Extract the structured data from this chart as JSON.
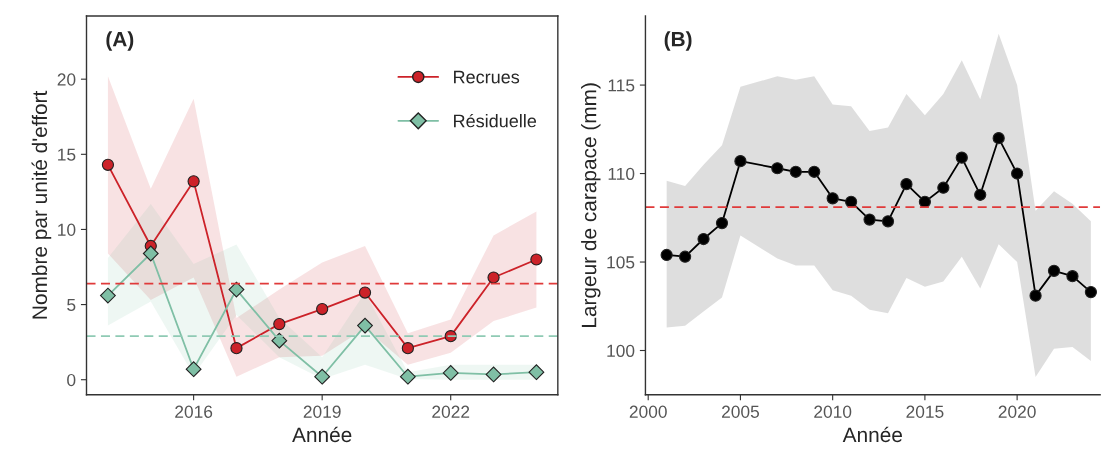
{
  "chart_data": [
    {
      "type": "line",
      "title": "(A)",
      "xlabel": "Année",
      "ylabel": "Nombre par unité d'effort",
      "x": [
        2014,
        2015,
        2016,
        2017,
        2018,
        2019,
        2020,
        2021,
        2022,
        2023,
        2024
      ],
      "series": [
        {
          "name": "Recrues",
          "color": "#cc2229",
          "marker": "circle",
          "values": [
            14.3,
            8.9,
            13.2,
            2.1,
            3.7,
            4.7,
            5.8,
            2.1,
            2.9,
            6.8,
            8.0
          ],
          "lower": [
            8.4,
            5.3,
            6.8,
            0.2,
            1.5,
            1.6,
            3.4,
            1.0,
            1.8,
            3.9,
            4.8
          ],
          "upper": [
            20.2,
            12.7,
            18.7,
            4.1,
            6.0,
            7.8,
            8.9,
            3.1,
            4.0,
            9.6,
            11.2
          ]
        },
        {
          "name": "Résiduelle",
          "color": "#7fbfa5",
          "marker": "diamond",
          "values": [
            5.6,
            8.4,
            0.7,
            6.0,
            2.6,
            0.2,
            3.6,
            0.2,
            0.45,
            0.35,
            0.5
          ],
          "lower": [
            3.6,
            5.2,
            0.3,
            4.3,
            1.5,
            0.05,
            1.0,
            0.05,
            0.0,
            0.0,
            0.0
          ],
          "upper": [
            8.1,
            11.7,
            7.7,
            9.0,
            4.1,
            1.5,
            5.8,
            0.5,
            1.0,
            1.0,
            1.0
          ]
        }
      ],
      "ref_lines": [
        {
          "axis": "y",
          "value": 6.4,
          "color": "#e03a3a",
          "line_style": "dashed"
        },
        {
          "axis": "y",
          "value": 2.9,
          "color": "#8fcab4",
          "line_style": "dashed"
        }
      ],
      "xlim": [
        2013.5,
        2024.5
      ],
      "ylim": [
        -1,
        24.2
      ],
      "xticks": [
        2016,
        2019,
        2022
      ],
      "yticks": [
        0,
        5,
        10,
        15,
        20
      ],
      "legend": "top right",
      "grid": false,
      "line_style": "solid"
    },
    {
      "type": "line",
      "title": "(B)",
      "xlabel": "Année",
      "ylabel": "Largeur de carapace (mm)",
      "x": [
        2001,
        2002,
        2003,
        2004,
        2005,
        2007,
        2008,
        2009,
        2010,
        2011,
        2012,
        2013,
        2014,
        2015,
        2016,
        2017,
        2018,
        2019,
        2020,
        2021,
        2022,
        2023,
        2024
      ],
      "series": [
        {
          "color": "#000000",
          "marker": "circle",
          "values": [
            105.4,
            105.3,
            106.3,
            107.2,
            110.7,
            110.3,
            110.1,
            110.1,
            108.6,
            108.4,
            107.4,
            107.3,
            109.4,
            108.4,
            109.2,
            110.9,
            108.8,
            112.0,
            110.0,
            103.1,
            104.5,
            104.2,
            103.3
          ],
          "lower": [
            101.3,
            101.4,
            102.2,
            103.0,
            106.5,
            105.2,
            104.8,
            104.8,
            103.4,
            103.1,
            102.3,
            102.1,
            104.1,
            103.6,
            103.9,
            105.3,
            103.5,
            106.0,
            105.0,
            98.5,
            100.1,
            100.2,
            99.4
          ],
          "upper": [
            109.6,
            109.3,
            110.5,
            111.6,
            114.9,
            115.5,
            115.3,
            115.5,
            113.9,
            113.8,
            112.4,
            112.6,
            114.5,
            113.3,
            114.5,
            116.4,
            114.2,
            117.9,
            115.0,
            107.9,
            109.0,
            108.3,
            107.3
          ]
        }
      ],
      "ref_lines": [
        {
          "axis": "y",
          "value": 108.1,
          "color": "#e03a3a",
          "line_style": "dashed"
        }
      ],
      "xlim": [
        1999.85,
        2024.5
      ],
      "ylim": [
        97.5,
        118.9
      ],
      "xticks": [
        2000,
        2005,
        2010,
        2015,
        2020
      ],
      "yticks": [
        100,
        105,
        110,
        115
      ],
      "legend": false,
      "grid": false,
      "line_style": "solid"
    }
  ]
}
